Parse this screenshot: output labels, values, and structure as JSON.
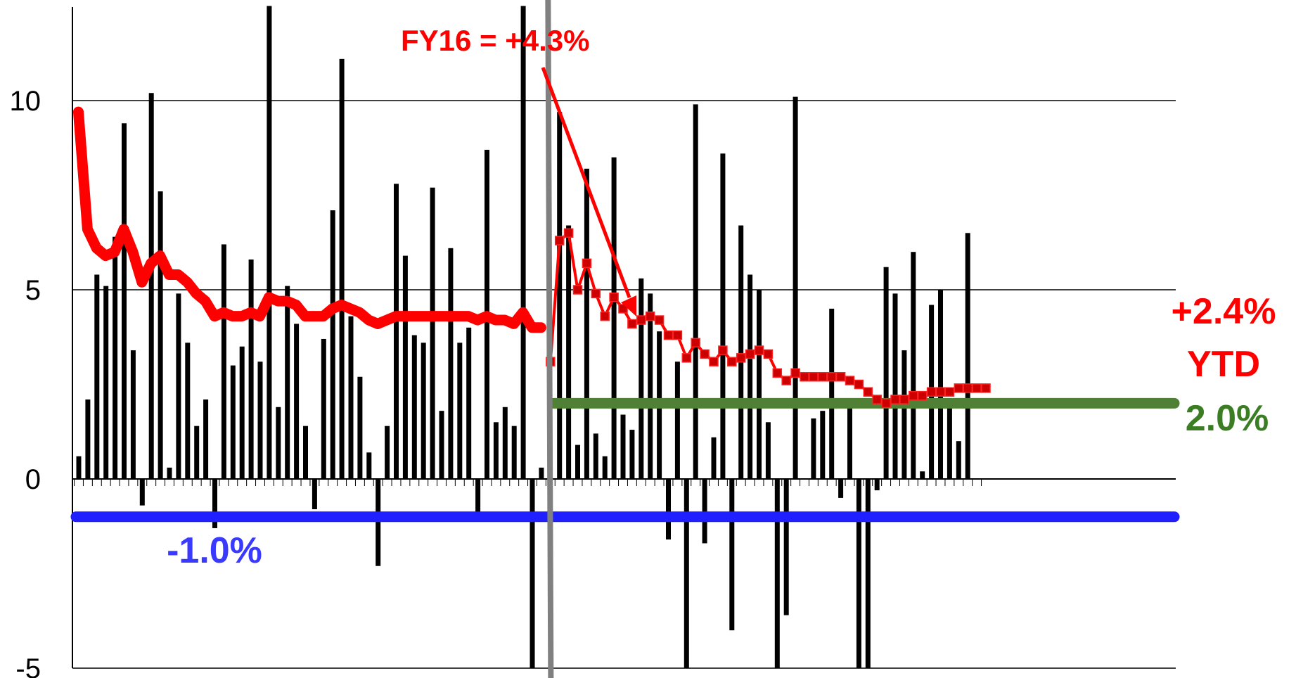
{
  "chart_data": {
    "type": "bar",
    "title": "",
    "xlabel": "",
    "ylabel": "",
    "ylim": [
      -5,
      12.5
    ],
    "yticks": [
      10,
      5,
      0,
      -5
    ],
    "ytick_labels": [
      "10",
      "5",
      "0",
      "-5"
    ],
    "grid": true,
    "colors": {
      "bars": "#000000",
      "fy16_line": "#ff0000",
      "ytd_line": "#ff0000",
      "ytd_marker": "#cc0000",
      "target_line": "#4f8035",
      "floor_line": "#1f1fff",
      "divider": "#808080",
      "grid": "#000000"
    },
    "series": [
      {
        "name": "bars",
        "values": [
          0.6,
          2.1,
          5.4,
          5.1,
          6.4,
          9.4,
          3.4,
          -0.7,
          10.2,
          7.6,
          0.3,
          4.9,
          3.6,
          1.4,
          2.1,
          -1.3,
          6.2,
          3.0,
          3.5,
          5.8,
          3.1,
          12.7,
          1.9,
          5.1,
          4.1,
          1.4,
          -0.8,
          3.7,
          7.1,
          11.1,
          4.3,
          2.7,
          0.7,
          -2.3,
          1.4,
          7.8,
          5.9,
          3.8,
          3.6,
          7.7,
          1.8,
          6.1,
          3.6,
          4.0,
          -0.9,
          8.7,
          1.5,
          1.9,
          1.4,
          12.7,
          -5.0,
          0.3,
          0.0,
          9.7,
          6.7,
          0.9,
          8.2,
          1.2,
          0.6,
          8.5,
          1.7,
          1.3,
          5.3,
          4.9,
          3.9,
          -1.6,
          3.1,
          -5.0,
          9.9,
          -1.7,
          1.1,
          8.6,
          -4.0,
          6.7,
          5.4,
          5.0,
          1.5,
          -5.0,
          -3.6,
          10.1,
          0.0,
          1.6,
          1.8,
          4.5,
          -0.5,
          2.0,
          -5.0,
          -5.0,
          -0.3,
          5.6,
          4.9,
          3.4,
          6.0,
          0.2,
          4.6,
          5.0,
          2.1,
          1.0,
          6.5,
          0.0
        ]
      },
      {
        "name": "FY16 running average",
        "values": [
          9.7,
          6.6,
          6.1,
          5.9,
          6.0,
          6.6,
          6.0,
          5.2,
          5.7,
          5.9,
          5.4,
          5.4,
          5.2,
          4.9,
          4.7,
          4.3,
          4.4,
          4.3,
          4.3,
          4.4,
          4.3,
          4.8,
          4.7,
          4.7,
          4.6,
          4.3,
          4.3,
          4.3,
          4.5,
          4.6,
          4.5,
          4.4,
          4.2,
          4.1,
          4.2,
          4.3,
          4.3,
          4.3,
          4.3,
          4.3,
          4.3,
          4.3,
          4.3,
          4.3,
          4.2,
          4.3,
          4.2,
          4.2,
          4.1,
          4.4,
          4.0,
          4.0
        ]
      },
      {
        "name": "YTD running average",
        "values": [
          3.1,
          6.3,
          6.5,
          5.0,
          5.7,
          4.9,
          4.3,
          4.8,
          4.5,
          4.1,
          4.2,
          4.3,
          4.2,
          3.8,
          3.8,
          3.2,
          3.6,
          3.3,
          3.1,
          3.4,
          3.1,
          3.2,
          3.3,
          3.4,
          3.3,
          2.8,
          2.6,
          2.8,
          2.7,
          2.7,
          2.7,
          2.7,
          2.7,
          2.6,
          2.5,
          2.3,
          2.1,
          2.0,
          2.1,
          2.1,
          2.2,
          2.2,
          2.3,
          2.3,
          2.3,
          2.4,
          2.4,
          2.4,
          2.4
        ]
      }
    ],
    "reference_lines": [
      {
        "value": 2.0,
        "label": "2.0%"
      },
      {
        "value": -1.0,
        "label": "-1.0%"
      }
    ],
    "annotations": {
      "fy16": "FY16 = +4.3%",
      "ytd_value": "+2.4%",
      "ytd_word": "YTD",
      "target": "2.0%",
      "floor": "-1.0%"
    }
  }
}
